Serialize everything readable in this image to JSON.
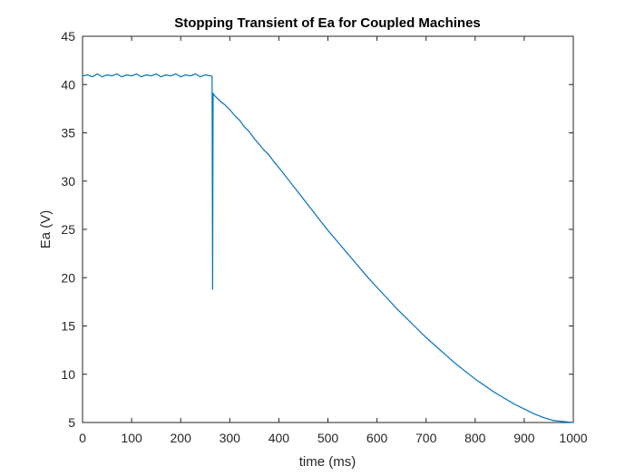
{
  "chart_data": {
    "type": "line",
    "title": "Stopping Transient of Ea for Coupled Machines",
    "xlabel": "time (ms)",
    "ylabel": "Ea (V)",
    "xlim": [
      0,
      1000
    ],
    "ylim": [
      5,
      45
    ],
    "xticks": [
      0,
      100,
      200,
      300,
      400,
      500,
      600,
      700,
      800,
      900,
      1000
    ],
    "yticks": [
      5,
      10,
      15,
      20,
      25,
      30,
      35,
      40,
      45
    ],
    "grid": false,
    "box": true,
    "line_color": "#0072BD",
    "series": [
      {
        "x": [
          0,
          10,
          20,
          30,
          40,
          50,
          60,
          70,
          80,
          90,
          100,
          110,
          120,
          130,
          140,
          150,
          160,
          170,
          180,
          190,
          200,
          210,
          220,
          230,
          240,
          250,
          262,
          264,
          265,
          266,
          268,
          272,
          280,
          290,
          300,
          310,
          320,
          330,
          340,
          350,
          360,
          370,
          380,
          390,
          400,
          420,
          440,
          460,
          480,
          500,
          520,
          540,
          560,
          580,
          600,
          620,
          640,
          660,
          680,
          700,
          720,
          740,
          760,
          780,
          800,
          820,
          840,
          860,
          880,
          900,
          920,
          940,
          960,
          980,
          1000
        ],
        "y": [
          40.9,
          41.0,
          40.8,
          41.1,
          40.8,
          41.0,
          40.9,
          41.1,
          40.8,
          41.0,
          40.9,
          41.1,
          40.8,
          41.0,
          40.9,
          41.1,
          40.8,
          41.0,
          40.9,
          41.1,
          40.8,
          41.0,
          40.9,
          41.1,
          40.8,
          41.0,
          40.9,
          40.8,
          18.8,
          39.1,
          38.9,
          38.7,
          38.3,
          37.9,
          37.4,
          36.8,
          36.3,
          35.6,
          35.1,
          34.4,
          33.8,
          33.2,
          32.7,
          32.0,
          31.4,
          30.1,
          28.8,
          27.5,
          26.2,
          24.9,
          23.7,
          22.5,
          21.3,
          20.1,
          19.0,
          17.9,
          16.8,
          15.8,
          14.8,
          13.8,
          12.9,
          12.0,
          11.1,
          10.3,
          9.5,
          8.8,
          8.1,
          7.5,
          6.9,
          6.4,
          5.9,
          5.5,
          5.2,
          5.1,
          5.0
        ]
      }
    ]
  }
}
